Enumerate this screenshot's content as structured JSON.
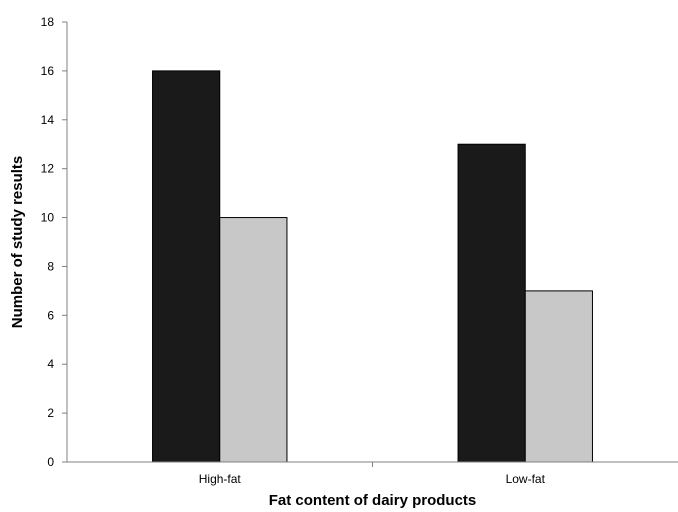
{
  "chart_data": {
    "type": "bar",
    "title": "",
    "xlabel": "Fat content of dairy products",
    "ylabel": "Number of study results",
    "categories": [
      "High-fat",
      "Low-fat"
    ],
    "series": [
      {
        "values": [
          16,
          13
        ],
        "color": "#1a1a1a"
      },
      {
        "values": [
          10,
          7
        ],
        "color": "#c8c8c8"
      }
    ],
    "ylim": [
      0,
      18
    ],
    "yticks": [
      "0",
      "2",
      "4",
      "6",
      "8",
      "10",
      "12",
      "14",
      "16",
      "18"
    ],
    "grid": false,
    "legend": "none"
  }
}
